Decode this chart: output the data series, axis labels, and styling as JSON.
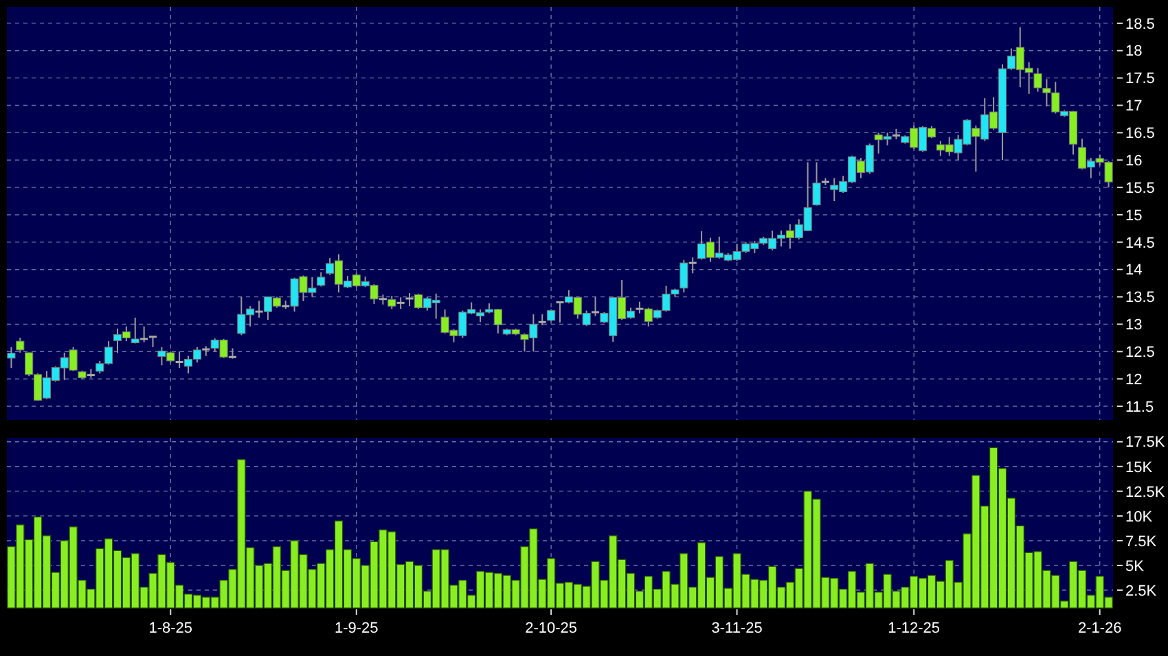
{
  "chart_data": [
    {
      "type": "candlestick",
      "categories": [
        null,
        null,
        null,
        null,
        null,
        null,
        null,
        null,
        null,
        null,
        null,
        null,
        null,
        null,
        null,
        null,
        null,
        null,
        null,
        null,
        null,
        null,
        null,
        null,
        null,
        null,
        null,
        null,
        null,
        null,
        null,
        null,
        null,
        null,
        null,
        null,
        null,
        null,
        null,
        null,
        null,
        null,
        null,
        null,
        null,
        null,
        null,
        null,
        null,
        null,
        null,
        null,
        null,
        null,
        null,
        null,
        null,
        null,
        null,
        null,
        null,
        null,
        null,
        null,
        null,
        null,
        null,
        null,
        null,
        null,
        null,
        null,
        null,
        null,
        null,
        null,
        null,
        null,
        null,
        null,
        null,
        null,
        null,
        null,
        null,
        null,
        null,
        null,
        null,
        null,
        null,
        null,
        null,
        null,
        null,
        null,
        null,
        null,
        null,
        null,
        null,
        null,
        null,
        null,
        null,
        null,
        null,
        null,
        null,
        null,
        null,
        null,
        null,
        null,
        null,
        null,
        null,
        null,
        null,
        null,
        null,
        null,
        null,
        null,
        null
      ],
      "ohlc": [
        [
          12.38,
          12.58,
          12.2,
          12.47
        ],
        [
          12.69,
          12.75,
          12.48,
          12.53
        ],
        [
          12.48,
          12.48,
          12.05,
          12.08
        ],
        [
          12.08,
          12.1,
          11.6,
          11.61
        ],
        [
          11.65,
          12.14,
          11.63,
          12.02
        ],
        [
          11.97,
          12.23,
          11.95,
          12.21
        ],
        [
          12.2,
          12.48,
          11.98,
          12.39
        ],
        [
          12.53,
          12.58,
          12.14,
          12.16
        ],
        [
          12.13,
          12.15,
          12.0,
          12.02
        ],
        [
          12.07,
          12.18,
          12.02,
          12.07
        ],
        [
          12.14,
          12.33,
          12.1,
          12.28
        ],
        [
          12.28,
          12.69,
          12.26,
          12.58
        ],
        [
          12.7,
          12.92,
          12.48,
          12.81
        ],
        [
          12.86,
          12.96,
          12.69,
          12.75
        ],
        [
          12.66,
          13.12,
          12.65,
          12.73
        ],
        [
          12.73,
          12.96,
          12.67,
          12.73
        ],
        [
          12.77,
          12.78,
          12.58,
          12.77
        ],
        [
          12.41,
          12.58,
          12.25,
          12.51
        ],
        [
          12.48,
          12.5,
          12.3,
          12.33
        ],
        [
          12.31,
          12.5,
          12.2,
          12.31
        ],
        [
          12.23,
          12.42,
          12.1,
          12.36
        ],
        [
          12.36,
          12.58,
          12.3,
          12.53
        ],
        [
          12.54,
          12.6,
          12.42,
          12.54
        ],
        [
          12.56,
          12.74,
          12.5,
          12.71
        ],
        [
          12.71,
          12.73,
          12.38,
          12.4
        ],
        [
          12.4,
          12.56,
          12.37,
          12.4
        ],
        [
          12.83,
          13.5,
          12.8,
          13.18
        ],
        [
          13.17,
          13.33,
          12.96,
          13.28
        ],
        [
          13.23,
          13.43,
          13.12,
          13.23
        ],
        [
          13.23,
          13.5,
          13.08,
          13.5
        ],
        [
          13.48,
          13.5,
          13.3,
          13.33
        ],
        [
          13.33,
          13.43,
          13.28,
          13.33
        ],
        [
          13.33,
          13.85,
          13.23,
          13.83
        ],
        [
          13.87,
          13.89,
          13.42,
          13.58
        ],
        [
          13.58,
          13.86,
          13.5,
          13.66
        ],
        [
          13.71,
          13.95,
          13.69,
          13.86
        ],
        [
          13.93,
          14.21,
          13.9,
          14.11
        ],
        [
          14.16,
          14.28,
          13.58,
          13.73
        ],
        [
          13.68,
          13.88,
          13.66,
          13.79
        ],
        [
          13.9,
          13.93,
          13.68,
          13.7
        ],
        [
          13.7,
          13.87,
          13.68,
          13.78
        ],
        [
          13.71,
          13.73,
          13.37,
          13.46
        ],
        [
          13.46,
          13.54,
          13.36,
          13.46
        ],
        [
          13.45,
          13.52,
          13.28,
          13.33
        ],
        [
          13.39,
          13.49,
          13.28,
          13.39
        ],
        [
          13.47,
          13.57,
          13.33,
          13.47
        ],
        [
          13.54,
          13.56,
          13.28,
          13.3
        ],
        [
          13.3,
          13.5,
          13.25,
          13.47
        ],
        [
          13.39,
          13.56,
          13.1,
          13.44
        ],
        [
          13.13,
          13.27,
          12.83,
          12.85
        ],
        [
          12.89,
          12.91,
          12.67,
          12.79
        ],
        [
          12.79,
          13.25,
          12.75,
          13.22
        ],
        [
          13.2,
          13.4,
          13.18,
          13.27
        ],
        [
          13.15,
          13.27,
          13.04,
          13.21
        ],
        [
          13.22,
          13.38,
          13.2,
          13.27
        ],
        [
          13.27,
          13.28,
          12.83,
          12.99
        ],
        [
          12.82,
          12.92,
          12.8,
          12.9
        ],
        [
          12.9,
          12.92,
          12.8,
          12.82
        ],
        [
          12.81,
          12.83,
          12.5,
          12.72
        ],
        [
          12.75,
          13.18,
          12.5,
          13.0
        ],
        [
          13.04,
          13.18,
          12.98,
          13.04
        ],
        [
          13.07,
          13.27,
          13.05,
          13.25
        ],
        [
          13.4,
          13.4,
          13.03,
          13.4
        ],
        [
          13.4,
          13.62,
          13.38,
          13.5
        ],
        [
          13.49,
          13.5,
          13.1,
          13.18
        ],
        [
          12.99,
          13.25,
          12.97,
          13.2
        ],
        [
          13.22,
          13.5,
          13.15,
          13.22
        ],
        [
          13.04,
          13.22,
          13.02,
          13.2
        ],
        [
          12.79,
          13.5,
          12.68,
          13.49
        ],
        [
          13.49,
          13.81,
          13.08,
          13.1
        ],
        [
          13.12,
          13.3,
          13.1,
          13.24
        ],
        [
          13.28,
          13.41,
          13.2,
          13.28
        ],
        [
          13.28,
          13.3,
          12.96,
          13.05
        ],
        [
          13.12,
          13.27,
          13.1,
          13.25
        ],
        [
          13.25,
          13.7,
          13.23,
          13.55
        ],
        [
          13.55,
          13.65,
          13.5,
          13.63
        ],
        [
          13.66,
          14.17,
          13.58,
          14.12
        ],
        [
          14.12,
          14.22,
          13.93,
          14.12
        ],
        [
          14.2,
          14.7,
          14.18,
          14.47
        ],
        [
          14.5,
          14.58,
          14.14,
          14.22
        ],
        [
          14.22,
          14.6,
          14.2,
          14.3
        ],
        [
          14.17,
          14.3,
          14.15,
          14.27
        ],
        [
          14.18,
          14.47,
          14.16,
          14.33
        ],
        [
          14.33,
          14.5,
          14.3,
          14.47
        ],
        [
          14.38,
          14.52,
          14.3,
          14.48
        ],
        [
          14.48,
          14.6,
          14.45,
          14.57
        ],
        [
          14.38,
          14.71,
          14.35,
          14.57
        ],
        [
          14.57,
          14.71,
          14.42,
          14.63
        ],
        [
          14.71,
          14.83,
          14.38,
          14.58
        ],
        [
          14.58,
          14.92,
          14.55,
          14.82
        ],
        [
          14.71,
          15.96,
          14.7,
          15.13
        ],
        [
          15.18,
          15.96,
          15.17,
          15.58
        ],
        [
          15.6,
          15.67,
          15.54,
          15.6
        ],
        [
          15.46,
          15.67,
          15.25,
          15.54
        ],
        [
          15.42,
          15.71,
          15.4,
          15.61
        ],
        [
          15.6,
          16.08,
          15.58,
          16.06
        ],
        [
          15.98,
          16.04,
          15.67,
          15.77
        ],
        [
          15.78,
          16.3,
          15.75,
          16.27
        ],
        [
          16.46,
          16.5,
          16.12,
          16.37
        ],
        [
          16.38,
          16.5,
          16.27,
          16.43
        ],
        [
          16.45,
          16.57,
          16.38,
          16.45
        ],
        [
          16.32,
          16.45,
          16.3,
          16.43
        ],
        [
          16.58,
          16.63,
          16.2,
          16.23
        ],
        [
          16.17,
          16.62,
          16.15,
          16.6
        ],
        [
          16.58,
          16.62,
          16.4,
          16.42
        ],
        [
          16.28,
          16.35,
          16.08,
          16.18
        ],
        [
          16.28,
          16.42,
          16.08,
          16.15
        ],
        [
          16.13,
          16.46,
          16.0,
          16.38
        ],
        [
          16.29,
          16.75,
          16.27,
          16.73
        ],
        [
          16.58,
          16.63,
          15.79,
          16.43
        ],
        [
          16.38,
          17.13,
          16.35,
          16.83
        ],
        [
          16.88,
          17.15,
          16.55,
          16.58
        ],
        [
          16.5,
          17.75,
          16.0,
          17.67
        ],
        [
          17.67,
          18.04,
          17.65,
          17.9
        ],
        [
          18.06,
          18.43,
          17.33,
          17.65
        ],
        [
          17.68,
          17.79,
          17.21,
          17.6
        ],
        [
          17.58,
          17.68,
          17.25,
          17.32
        ],
        [
          17.31,
          17.48,
          16.98,
          17.23
        ],
        [
          17.23,
          17.43,
          16.85,
          16.88
        ],
        [
          16.81,
          16.91,
          16.79,
          16.89
        ],
        [
          16.89,
          16.9,
          16.1,
          16.29
        ],
        [
          16.23,
          16.39,
          15.83,
          15.85
        ],
        [
          15.87,
          16.04,
          15.67,
          15.98
        ],
        [
          16.03,
          16.1,
          15.9,
          15.96
        ],
        [
          15.96,
          15.98,
          15.5,
          15.6
        ]
      ],
      "colors": [
        "#22e4f2",
        "#88ee22",
        "#88ee22",
        "#88ee22",
        "#22e4f2",
        "#22e4f2",
        "#22e4f2",
        "#88ee22",
        "#88ee22",
        "#aaaaaa",
        "#22e4f2",
        "#22e4f2",
        "#22e4f2",
        "#88ee22",
        "#22e4f2",
        "#aaaaaa",
        "#aaaaaa",
        "#22e4f2",
        "#88ee22",
        "#aaaaaa",
        "#22e4f2",
        "#22e4f2",
        "#aaaaaa",
        "#22e4f2",
        "#88ee22",
        "#aaaaaa",
        "#22e4f2",
        "#22e4f2",
        "#aaaaaa",
        "#22e4f2",
        "#88ee22",
        "#aaaaaa",
        "#22e4f2",
        "#88ee22",
        "#22e4f2",
        "#22e4f2",
        "#22e4f2",
        "#88ee22",
        "#22e4f2",
        "#88ee22",
        "#22e4f2",
        "#88ee22",
        "#aaaaaa",
        "#88ee22",
        "#aaaaaa",
        "#aaaaaa",
        "#88ee22",
        "#22e4f2",
        "#22e4f2",
        "#88ee22",
        "#88ee22",
        "#22e4f2",
        "#22e4f2",
        "#22e4f2",
        "#22e4f2",
        "#88ee22",
        "#22e4f2",
        "#88ee22",
        "#88ee22",
        "#22e4f2",
        "#aaaaaa",
        "#22e4f2",
        "#aaaaaa",
        "#22e4f2",
        "#88ee22",
        "#22e4f2",
        "#aaaaaa",
        "#22e4f2",
        "#22e4f2",
        "#88ee22",
        "#22e4f2",
        "#aaaaaa",
        "#88ee22",
        "#22e4f2",
        "#22e4f2",
        "#22e4f2",
        "#22e4f2",
        "#aaaaaa",
        "#22e4f2",
        "#88ee22",
        "#22e4f2",
        "#22e4f2",
        "#22e4f2",
        "#22e4f2",
        "#22e4f2",
        "#22e4f2",
        "#22e4f2",
        "#22e4f2",
        "#88ee22",
        "#22e4f2",
        "#22e4f2",
        "#22e4f2",
        "#aaaaaa",
        "#22e4f2",
        "#22e4f2",
        "#22e4f2",
        "#88ee22",
        "#22e4f2",
        "#88ee22",
        "#22e4f2",
        "#aaaaaa",
        "#22e4f2",
        "#88ee22",
        "#22e4f2",
        "#88ee22",
        "#88ee22",
        "#88ee22",
        "#22e4f2",
        "#22e4f2",
        "#88ee22",
        "#22e4f2",
        "#88ee22",
        "#22e4f2",
        "#22e4f2",
        "#88ee22",
        "#88ee22",
        "#88ee22",
        "#88ee22",
        "#88ee22",
        "#22e4f2",
        "#88ee22",
        "#88ee22",
        "#22e4f2",
        "#88ee22",
        "#88ee22"
      ],
      "ylim": [
        11.25,
        18.8
      ],
      "yticks": [
        11.5,
        12,
        12.5,
        13,
        13.5,
        14,
        14.5,
        15,
        15.5,
        16,
        16.5,
        17,
        17.5,
        18,
        18.5
      ],
      "grid": true,
      "tick_labels": "y"
    },
    {
      "type": "bar",
      "categories": [
        null,
        null,
        null,
        null,
        null,
        null,
        null,
        null,
        null,
        null,
        null,
        null,
        null,
        null,
        null,
        null,
        null,
        null,
        "1-8-25",
        null,
        null,
        null,
        null,
        null,
        null,
        null,
        null,
        null,
        null,
        null,
        null,
        null,
        null,
        null,
        null,
        null,
        null,
        null,
        null,
        "1-9-25",
        null,
        null,
        null,
        null,
        null,
        null,
        null,
        null,
        null,
        null,
        null,
        null,
        null,
        null,
        null,
        null,
        null,
        null,
        null,
        null,
        null,
        "2-10-25",
        null,
        null,
        null,
        null,
        null,
        null,
        null,
        null,
        null,
        null,
        null,
        null,
        null,
        null,
        null,
        null,
        null,
        null,
        null,
        null,
        "3-11-25",
        null,
        null,
        null,
        null,
        null,
        null,
        null,
        null,
        null,
        null,
        null,
        null,
        null,
        null,
        null,
        null,
        null,
        null,
        null,
        "1-12-25",
        null,
        null,
        null,
        null,
        null,
        null,
        null,
        null,
        null,
        null,
        null,
        null,
        null,
        null,
        null,
        null,
        null,
        null,
        null,
        null,
        "2-1-26",
        null
      ],
      "values": [
        6900,
        9100,
        7600,
        9900,
        8000,
        4300,
        7500,
        8900,
        3500,
        2600,
        6700,
        7700,
        6500,
        5800,
        6200,
        2800,
        4200,
        6100,
        5300,
        3000,
        2100,
        2000,
        1800,
        1800,
        3500,
        4600,
        15700,
        6800,
        5000,
        5200,
        6900,
        4500,
        7500,
        6100,
        4600,
        5200,
        6600,
        9500,
        6600,
        5700,
        5000,
        7400,
        8600,
        8400,
        5100,
        5400,
        5000,
        2400,
        6600,
        6600,
        3000,
        3500,
        2000,
        4400,
        4300,
        4200,
        4000,
        3500,
        6900,
        8700,
        3600,
        5700,
        3200,
        3300,
        3100,
        2900,
        5400,
        3500,
        8000,
        5600,
        4200,
        2400,
        3900,
        2600,
        4400,
        3100,
        6200,
        2800,
        7300,
        3800,
        5900,
        2700,
        6200,
        4100,
        3600,
        3500,
        4900,
        2800,
        3300,
        4700,
        12500,
        11700,
        3800,
        3700,
        2600,
        4400,
        2300,
        5200,
        2300,
        4100,
        2400,
        2800,
        3900,
        3700,
        4000,
        3400,
        5500,
        3300,
        8200,
        14100,
        11000,
        16900,
        14800,
        11800,
        9000,
        6300,
        6400,
        4500,
        4000,
        1400,
        5400,
        4500,
        2000,
        3900,
        1800
      ],
      "color": "#88ee22",
      "ylim": [
        700,
        17900
      ],
      "yticks": [
        {
          "value": 2500,
          "label": "2.5K"
        },
        {
          "value": 5000,
          "label": "5K"
        },
        {
          "value": 7500,
          "label": "7.5K"
        },
        {
          "value": 10000,
          "label": "10K"
        },
        {
          "value": 12500,
          "label": "12.5K"
        },
        {
          "value": 15000,
          "label": "15K"
        },
        {
          "value": 17500,
          "label": "17.5K"
        }
      ],
      "grid": true
    }
  ]
}
